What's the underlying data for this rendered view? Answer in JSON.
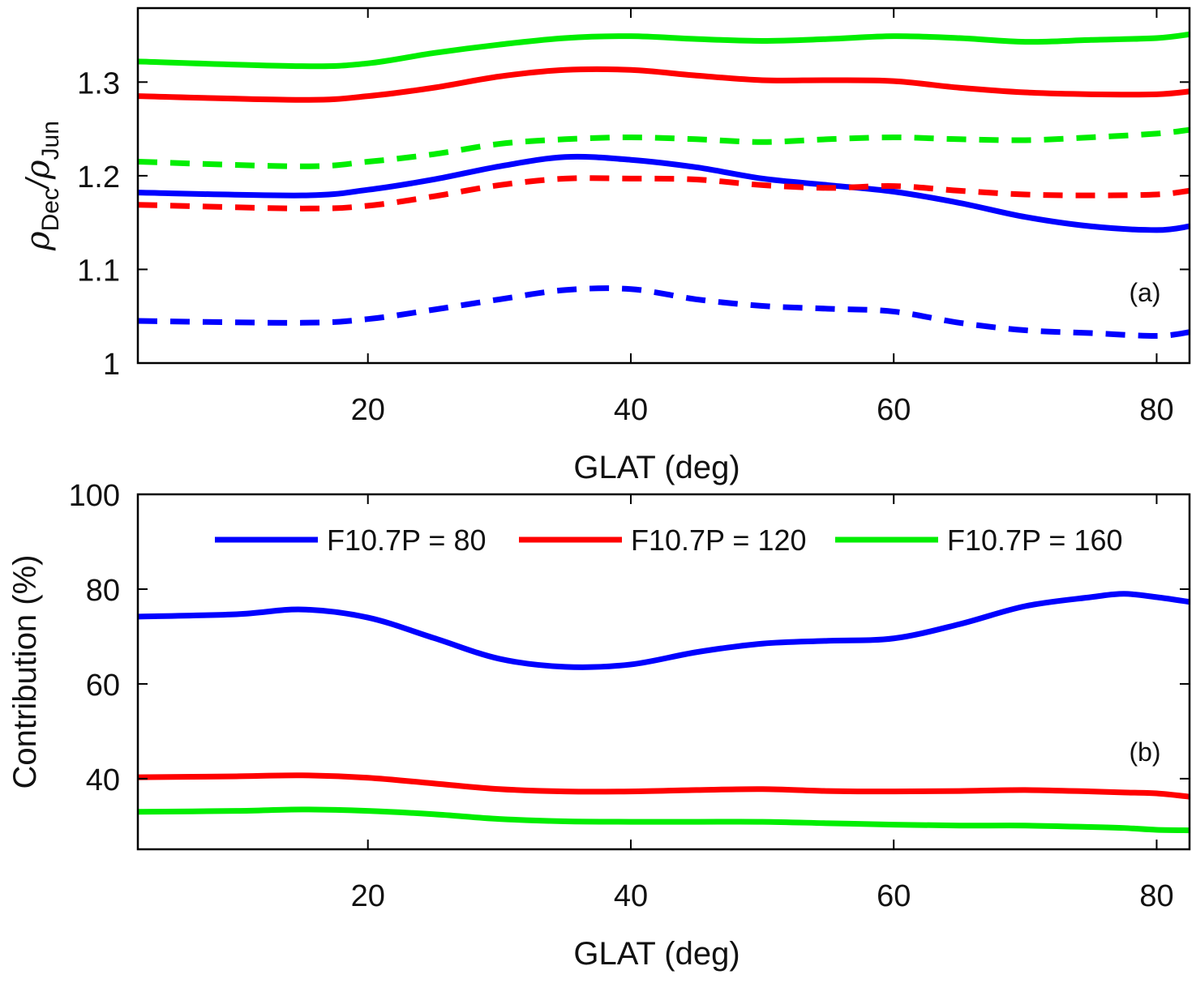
{
  "chart_data": [
    {
      "id": "a",
      "type": "line",
      "panel_tag": "(a)",
      "title": "",
      "xlabel": "GLAT (deg)",
      "ylabel": {
        "rho": "ρ",
        "sub1": "Dec",
        "slash": "/",
        "sub2": "Jun"
      },
      "xlim": [
        2.5,
        82.5
      ],
      "ylim": [
        1.0,
        1.379
      ],
      "xticks": [
        20,
        40,
        60,
        80
      ],
      "xtick_labels": [
        "20",
        "40",
        "60",
        "80"
      ],
      "yticks": [
        1.0,
        1.1,
        1.2,
        1.3
      ],
      "ytick_labels": [
        "1",
        "1.1",
        "1.2",
        "1.3"
      ],
      "grid": false,
      "x": [
        2.5,
        15,
        20,
        25,
        30,
        35,
        40,
        45,
        50,
        55,
        60,
        65,
        70,
        75,
        80,
        82.5
      ],
      "series": [
        {
          "name": "F10.7P = 160 (solid)",
          "color": "#00ee00",
          "style": "solid",
          "values": [
            1.322,
            1.317,
            1.32,
            1.331,
            1.34,
            1.347,
            1.349,
            1.346,
            1.344,
            1.346,
            1.349,
            1.347,
            1.343,
            1.345,
            1.347,
            1.351
          ]
        },
        {
          "name": "F10.7P = 120 (solid)",
          "color": "#ff0000",
          "style": "solid",
          "values": [
            1.285,
            1.281,
            1.285,
            1.294,
            1.306,
            1.313,
            1.313,
            1.307,
            1.302,
            1.302,
            1.301,
            1.294,
            1.289,
            1.287,
            1.287,
            1.29
          ]
        },
        {
          "name": "F10.7P = 160 (dashed)",
          "color": "#00ee00",
          "style": "dashed",
          "values": [
            1.215,
            1.21,
            1.215,
            1.223,
            1.234,
            1.239,
            1.241,
            1.239,
            1.236,
            1.239,
            1.241,
            1.239,
            1.238,
            1.241,
            1.245,
            1.249
          ]
        },
        {
          "name": "F10.7P = 80 (solid)",
          "color": "#0000ff",
          "style": "solid",
          "values": [
            1.182,
            1.179,
            1.185,
            1.196,
            1.21,
            1.22,
            1.217,
            1.209,
            1.197,
            1.19,
            1.183,
            1.171,
            1.156,
            1.146,
            1.142,
            1.146
          ]
        },
        {
          "name": "F10.7P = 120 (dashed)",
          "color": "#ff0000",
          "style": "dashed",
          "values": [
            1.169,
            1.165,
            1.168,
            1.178,
            1.19,
            1.197,
            1.197,
            1.196,
            1.19,
            1.187,
            1.189,
            1.184,
            1.18,
            1.179,
            1.18,
            1.184
          ]
        },
        {
          "name": "F10.7P = 80 (dashed)",
          "color": "#0000ff",
          "style": "dashed",
          "values": [
            1.045,
            1.043,
            1.047,
            1.057,
            1.068,
            1.078,
            1.079,
            1.068,
            1.061,
            1.058,
            1.055,
            1.043,
            1.035,
            1.032,
            1.029,
            1.033
          ]
        }
      ]
    },
    {
      "id": "b",
      "type": "line",
      "panel_tag": "(b)",
      "title": "",
      "xlabel": "GLAT (deg)",
      "ylabel": "Contribution (%)",
      "xlim": [
        2.5,
        82.5
      ],
      "ylim": [
        25.1,
        100
      ],
      "xticks": [
        20,
        40,
        60,
        80
      ],
      "xtick_labels": [
        "20",
        "40",
        "60",
        "80"
      ],
      "yticks": [
        40,
        60,
        80,
        100
      ],
      "ytick_labels": [
        "40",
        "60",
        "80",
        "100"
      ],
      "grid": false,
      "legend": {
        "placement": "top",
        "orientation": "horizontal"
      },
      "x": [
        2.5,
        10,
        15,
        20,
        25,
        30,
        35,
        40,
        45,
        50,
        55,
        60,
        65,
        70,
        75,
        77.5,
        80,
        82.5
      ],
      "series": [
        {
          "name": "F10.7P = 80",
          "color": "#0000ff",
          "style": "solid",
          "values": [
            74.2,
            74.7,
            75.7,
            74.0,
            69.7,
            65.3,
            63.6,
            64.1,
            66.7,
            68.5,
            69.1,
            69.6,
            72.6,
            76.4,
            78.3,
            79.0,
            78.3,
            77.3
          ]
        },
        {
          "name": "F10.7P = 120",
          "color": "#ff0000",
          "style": "solid",
          "values": [
            40.3,
            40.5,
            40.7,
            40.2,
            39.0,
            37.8,
            37.3,
            37.3,
            37.6,
            37.8,
            37.4,
            37.3,
            37.4,
            37.6,
            37.3,
            37.1,
            36.9,
            36.2
          ]
        },
        {
          "name": "F10.7P = 160",
          "color": "#00ee00",
          "style": "solid",
          "values": [
            33.0,
            33.2,
            33.5,
            33.2,
            32.5,
            31.5,
            31.0,
            30.9,
            30.9,
            30.9,
            30.6,
            30.3,
            30.1,
            30.1,
            29.8,
            29.6,
            29.2,
            29.1
          ]
        }
      ]
    }
  ]
}
